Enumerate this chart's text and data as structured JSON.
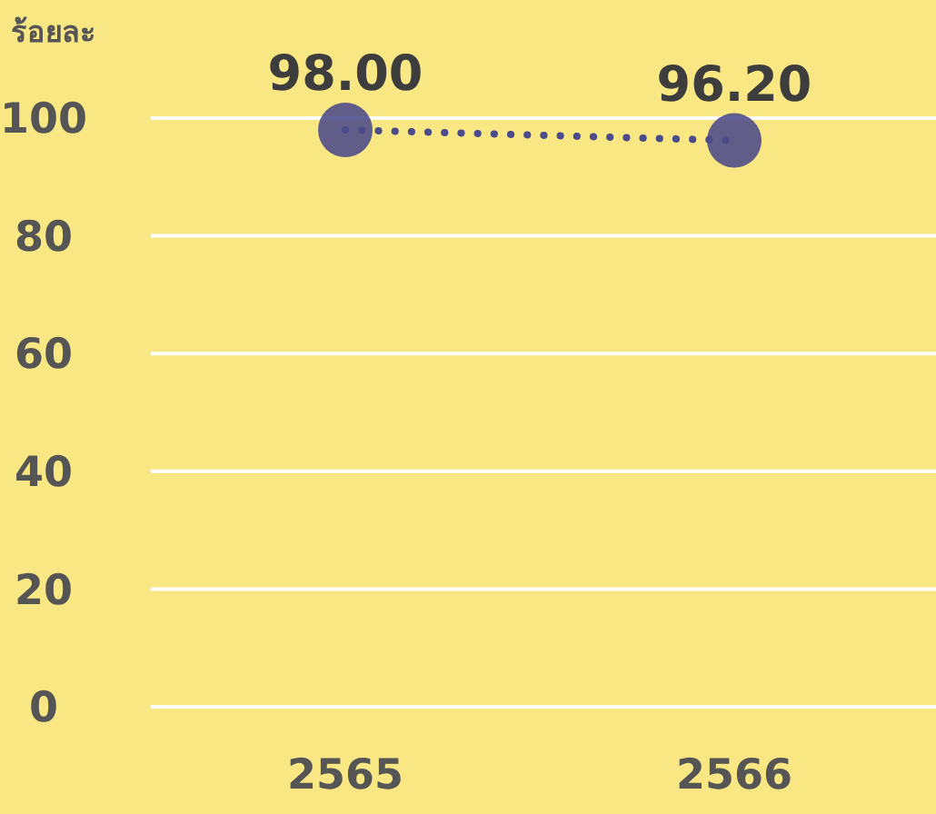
{
  "chart_data": {
    "type": "line",
    "ylabel": "ร้อยละ",
    "categories": [
      "2565",
      "2566"
    ],
    "series": [
      {
        "color": "#4b4a8a",
        "values": [
          98.0,
          96.2
        ]
      }
    ],
    "ylim": [
      0,
      100
    ],
    "yticks": [
      0,
      20,
      40,
      60,
      80,
      100
    ],
    "grid": "y",
    "marker": "circle",
    "line_style": "dotted",
    "value_labels": [
      "98.00",
      "96.20"
    ]
  }
}
